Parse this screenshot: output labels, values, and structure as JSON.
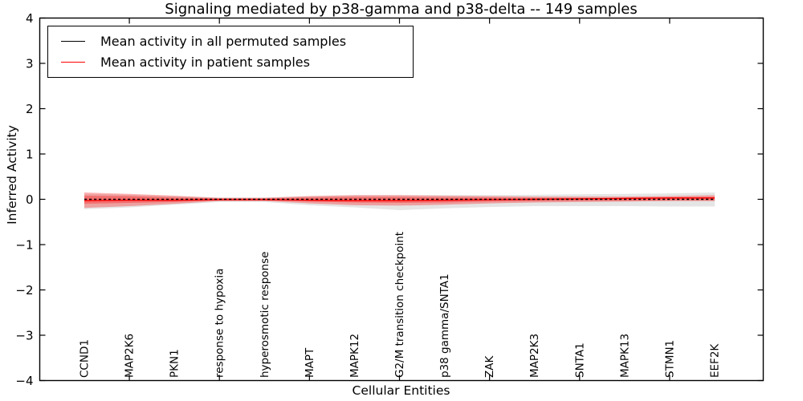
{
  "chart": {
    "title": "Signaling mediated by p38-gamma and p38-delta -- 149 samples",
    "xlabel": "Cellular Entities",
    "ylabel": "Inferred Activity"
  },
  "legend": {
    "items": [
      {
        "label": "Mean activity in all permuted samples",
        "color": "#000000"
      },
      {
        "label": "Mean activity in patient samples",
        "color": "#ff0000"
      }
    ]
  },
  "chart_data": {
    "type": "line",
    "title": "Signaling mediated by p38-gamma and p38-delta -- 149 samples",
    "xlabel": "Cellular Entities",
    "ylabel": "Inferred Activity",
    "ylim": [
      -4,
      4
    ],
    "yticks": [
      -4,
      -3,
      -2,
      -1,
      0,
      1,
      2,
      3,
      4
    ],
    "ytick_labels": [
      "−4",
      "−3",
      "−2",
      "−1",
      "0",
      "1",
      "2",
      "3",
      "4"
    ],
    "grid": false,
    "legend_position": "upper left",
    "categories": [
      "CCND1",
      "MAP2K6",
      "PKN1",
      "response to hypoxia",
      "hyperosmotic response",
      "MAPT",
      "MAPK12",
      "G2/M transition checkpoint",
      "p38 gamma/SNTA1",
      "ZAK",
      "MAP2K3",
      "SNTA1",
      "MAPK13",
      "STMN1",
      "EEF2K"
    ],
    "series": [
      {
        "name": "Mean activity in all permuted samples",
        "color": "#000000",
        "style": "dashed",
        "values": [
          0.0,
          0.0,
          0.0,
          0.0,
          0.0,
          0.0,
          0.0,
          0.0,
          0.0,
          0.0,
          0.0,
          0.0,
          0.0,
          0.0,
          0.0
        ]
      },
      {
        "name": "Mean activity in patient samples",
        "color": "#ff0000",
        "style": "solid",
        "values": [
          -0.03,
          -0.02,
          -0.02,
          -0.01,
          -0.01,
          -0.02,
          -0.03,
          -0.03,
          -0.02,
          -0.01,
          0.0,
          0.01,
          0.02,
          0.03,
          0.03
        ]
      }
    ],
    "bands": [
      {
        "name": "permuted-samples-range",
        "color": "#888888",
        "opacity": 0.22,
        "upper": [
          0.12,
          0.1,
          0.07,
          0.04,
          0.04,
          0.07,
          0.09,
          0.09,
          0.09,
          0.09,
          0.1,
          0.11,
          0.12,
          0.13,
          0.15
        ],
        "lower": [
          -0.22,
          -0.18,
          -0.12,
          -0.06,
          -0.06,
          -0.13,
          -0.18,
          -0.24,
          -0.2,
          -0.17,
          -0.15,
          -0.15,
          -0.15,
          -0.16,
          -0.16
        ]
      },
      {
        "name": "patient-samples-range-outer",
        "color": "#ff0000",
        "opacity": 0.3,
        "upper": [
          0.15,
          0.12,
          0.08,
          0.03,
          0.03,
          0.07,
          0.09,
          0.09,
          0.08,
          0.07,
          0.06,
          0.06,
          0.06,
          0.07,
          0.09
        ],
        "lower": [
          -0.19,
          -0.15,
          -0.1,
          -0.04,
          -0.04,
          -0.09,
          -0.13,
          -0.14,
          -0.12,
          -0.09,
          -0.07,
          -0.06,
          -0.05,
          -0.04,
          -0.04
        ]
      },
      {
        "name": "patient-samples-range-inner",
        "color": "#ff0000",
        "opacity": 0.3,
        "upper": [
          0.08,
          0.07,
          0.04,
          0.02,
          0.02,
          0.04,
          0.05,
          0.05,
          0.04,
          0.04,
          0.03,
          0.03,
          0.03,
          0.04,
          0.05
        ],
        "lower": [
          -0.1,
          -0.08,
          -0.06,
          -0.02,
          -0.02,
          -0.05,
          -0.07,
          -0.08,
          -0.07,
          -0.05,
          -0.04,
          -0.03,
          -0.03,
          -0.02,
          -0.02
        ]
      }
    ]
  }
}
